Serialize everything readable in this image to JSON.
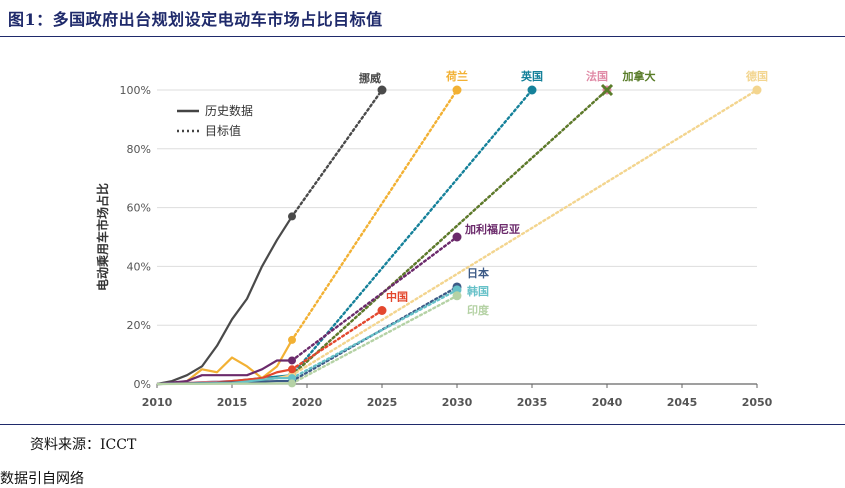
{
  "page": {
    "title": "图1：多国政府出台规划设定电动车市场占比目标值",
    "source": "资料来源：ICCT",
    "stray_text": "数据引自网络"
  },
  "chart_data": {
    "type": "line",
    "ylabel": "电动乘用车市场占比",
    "xlim": [
      2010,
      2050
    ],
    "ylim": [
      0,
      100
    ],
    "x_ticks": [
      "2010",
      "2015",
      "2020",
      "2025",
      "2030",
      "2035",
      "2040",
      "2045",
      "2050"
    ],
    "y_ticks": [
      "0%",
      "20%",
      "40%",
      "60%",
      "80%",
      "100%"
    ],
    "y_tick_values": [
      0,
      20,
      40,
      60,
      80,
      100
    ],
    "legend": {
      "items": [
        {
          "label": "历史数据",
          "style": "solid"
        },
        {
          "label": "目标值",
          "style": "dotted"
        }
      ],
      "placement": "top-left"
    },
    "series": [
      {
        "name": "挪威",
        "color": "#4a4a4a",
        "history": [
          [
            2010,
            0
          ],
          [
            2011,
            1
          ],
          [
            2012,
            3
          ],
          [
            2013,
            6
          ],
          [
            2014,
            13
          ],
          [
            2015,
            22
          ],
          [
            2016,
            29
          ],
          [
            2017,
            40
          ],
          [
            2018,
            49
          ],
          [
            2019,
            57
          ]
        ],
        "target": [
          [
            2019,
            57
          ],
          [
            2025,
            100
          ]
        ],
        "end_marker": "circle"
      },
      {
        "name": "荷兰",
        "color": "#f2b134",
        "history": [
          [
            2010,
            0
          ],
          [
            2011,
            0.2
          ],
          [
            2012,
            1
          ],
          [
            2013,
            5
          ],
          [
            2014,
            4
          ],
          [
            2015,
            9
          ],
          [
            2016,
            6
          ],
          [
            2017,
            2
          ],
          [
            2018,
            6
          ],
          [
            2019,
            15
          ]
        ],
        "target": [
          [
            2019,
            15
          ],
          [
            2030,
            100
          ]
        ],
        "end_marker": "circle"
      },
      {
        "name": "英国",
        "color": "#15819a",
        "history": [
          [
            2010,
            0
          ],
          [
            2015,
            1
          ],
          [
            2018,
            2.5
          ],
          [
            2019,
            3
          ]
        ],
        "target": [
          [
            2019,
            3
          ],
          [
            2035,
            100
          ]
        ],
        "end_marker": "circle"
      },
      {
        "name": "法国",
        "color": "#e08aa6",
        "history": [
          [
            2010,
            0
          ],
          [
            2015,
            1
          ],
          [
            2018,
            2
          ],
          [
            2019,
            3
          ]
        ],
        "target": [
          [
            2019,
            3
          ],
          [
            2040,
            100
          ]
        ],
        "end_marker": "circle"
      },
      {
        "name": "加拿大",
        "color": "#5a7d2a",
        "history": [
          [
            2010,
            0
          ],
          [
            2015,
            0.5
          ],
          [
            2018,
            2
          ],
          [
            2019,
            3
          ]
        ],
        "target": [
          [
            2019,
            3
          ],
          [
            2040,
            100
          ]
        ],
        "end_marker": "x"
      },
      {
        "name": "德国",
        "color": "#f3d58f",
        "history": [
          [
            2010,
            0
          ],
          [
            2015,
            0.5
          ],
          [
            2018,
            2
          ],
          [
            2019,
            3
          ]
        ],
        "target": [
          [
            2019,
            3
          ],
          [
            2050,
            100
          ]
        ],
        "end_marker": "circle"
      },
      {
        "name": "加利福尼亚",
        "color": "#6b2a6b",
        "history": [
          [
            2010,
            0
          ],
          [
            2012,
            1
          ],
          [
            2013,
            3
          ],
          [
            2014,
            3
          ],
          [
            2015,
            3
          ],
          [
            2016,
            3
          ],
          [
            2017,
            5
          ],
          [
            2018,
            8
          ],
          [
            2019,
            8
          ]
        ],
        "target": [
          [
            2019,
            8
          ],
          [
            2030,
            50
          ]
        ],
        "end_marker": "circle"
      },
      {
        "name": "中国",
        "color": "#e3472d",
        "history": [
          [
            2010,
            0
          ],
          [
            2014,
            0.5
          ],
          [
            2015,
            1
          ],
          [
            2016,
            1.5
          ],
          [
            2017,
            2
          ],
          [
            2018,
            4
          ],
          [
            2019,
            5
          ]
        ],
        "target": [
          [
            2019,
            5
          ],
          [
            2025,
            25
          ]
        ],
        "end_marker": "circle"
      },
      {
        "name": "日本",
        "color": "#3c5a86",
        "history": [
          [
            2010,
            0
          ],
          [
            2015,
            0.5
          ],
          [
            2018,
            1
          ],
          [
            2019,
            1
          ]
        ],
        "target": [
          [
            2019,
            1
          ],
          [
            2030,
            33
          ]
        ],
        "end_marker": "circle"
      },
      {
        "name": "韩国",
        "color": "#66c1c8",
        "history": [
          [
            2010,
            0
          ],
          [
            2015,
            0.3
          ],
          [
            2018,
            2
          ],
          [
            2019,
            2
          ]
        ],
        "target": [
          [
            2019,
            2
          ],
          [
            2030,
            32
          ]
        ],
        "end_marker": "circle"
      },
      {
        "name": "印度",
        "color": "#b5d2a5",
        "history": [
          [
            2010,
            0
          ],
          [
            2019,
            0.2
          ]
        ],
        "target": [
          [
            2019,
            0.2
          ],
          [
            2030,
            30
          ]
        ],
        "end_marker": "circle"
      }
    ]
  }
}
